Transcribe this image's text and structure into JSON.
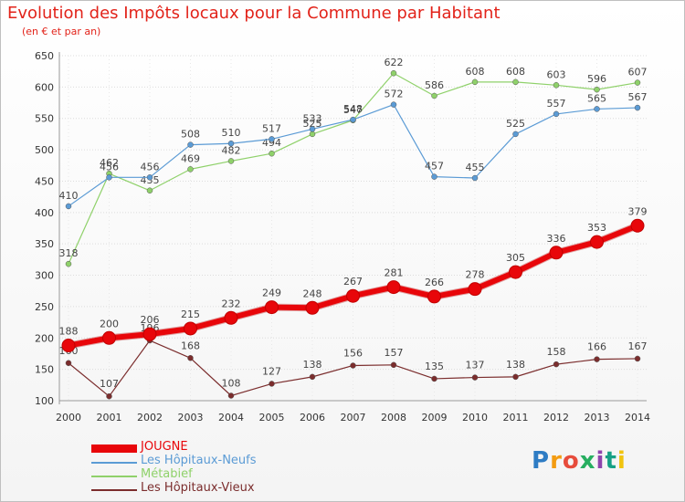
{
  "title": "Evolution des Impôts locaux pour la Commune par Habitant",
  "subtitle": "(en € et par an)",
  "logo_text": "Proxiti",
  "chart_data": {
    "type": "line",
    "title": "Evolution des Impôts locaux pour la Commune par Habitant",
    "subtitle": "(en € et par an)",
    "categories": [
      "2000",
      "2001",
      "2002",
      "2003",
      "2004",
      "2005",
      "2006",
      "2007",
      "2008",
      "2009",
      "2010",
      "2011",
      "2012",
      "2013",
      "2014"
    ],
    "y_ticks": [
      "100",
      "150",
      "200",
      "250",
      "300",
      "350",
      "400",
      "450",
      "500",
      "550",
      "600",
      "650"
    ],
    "ylim": [
      100,
      650
    ],
    "grid": true,
    "legend_position": "bottom-left",
    "series": [
      {
        "name": "JOUGNE",
        "color": "#e8060a",
        "emphasis": true,
        "values": [
          188,
          200,
          206,
          215,
          232,
          249,
          248,
          267,
          281,
          266,
          278,
          305,
          336,
          353,
          379
        ]
      },
      {
        "name": "Les Hôpitaux-Neufs",
        "color": "#5b9bd5",
        "values": [
          410,
          456,
          456,
          508,
          510,
          517,
          533,
          548,
          572,
          457,
          455,
          525,
          557,
          565,
          567
        ]
      },
      {
        "name": "Métabief",
        "color": "#8fd16a",
        "values": [
          318,
          462,
          435,
          469,
          482,
          494,
          525,
          547,
          622,
          586,
          608,
          608,
          603,
          596,
          607
        ]
      },
      {
        "name": "Les Hôpitaux-Vieux",
        "color": "#7b2d2d",
        "values": [
          160,
          107,
          196,
          168,
          108,
          127,
          138,
          156,
          157,
          135,
          137,
          138,
          158,
          166,
          167
        ]
      }
    ]
  }
}
